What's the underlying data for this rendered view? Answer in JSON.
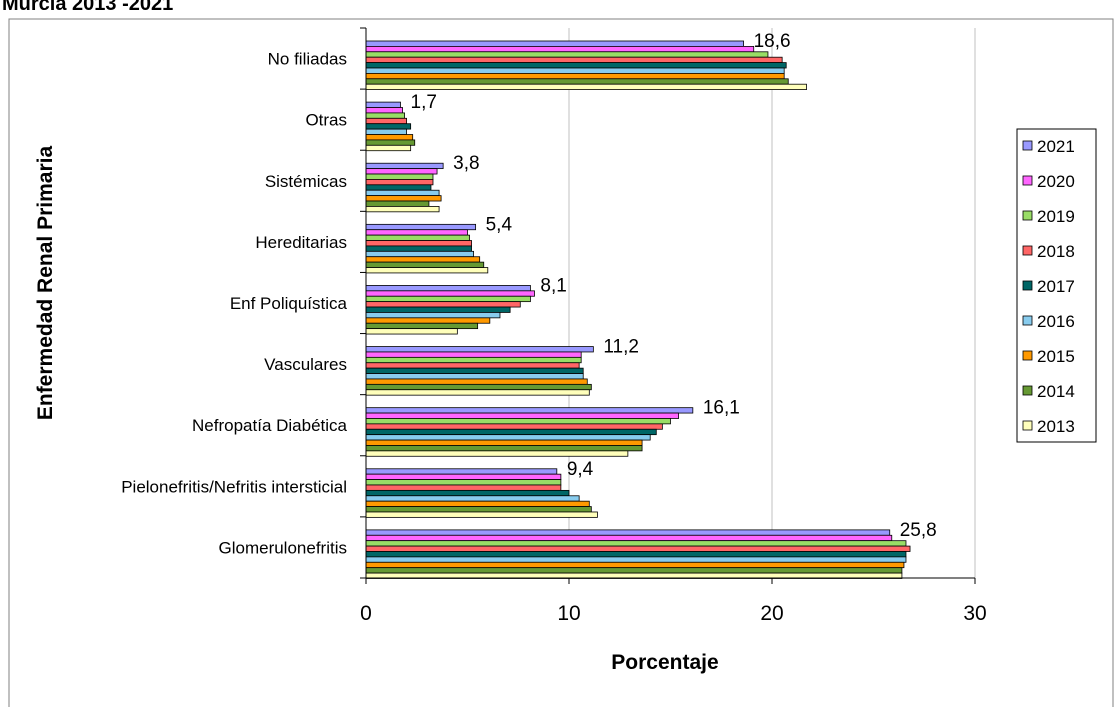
{
  "page": {
    "title": "Murcia 2013 -2021"
  },
  "chart_data": {
    "type": "bar",
    "orientation": "horizontal",
    "xlabel": "Porcentaje",
    "ylabel": "Enfermedad Renal Primaria",
    "xlim": [
      0,
      30
    ],
    "xticks": [
      "0",
      "10",
      "20",
      "30"
    ],
    "grid": "vertical gridlines",
    "legend_position": "right",
    "categories": [
      "No filiadas",
      "Otras",
      "Sistémicas",
      "Hereditarias",
      "Enf Poliquística",
      "Vasculares",
      "Nefropatía Diabética",
      "Pielonefritis/Nefritis intersticial",
      "Glomerulonefritis"
    ],
    "data_labels": [
      "18,6",
      "1,7",
      "3,8",
      "5,4",
      "8,1",
      "11,2",
      "16,1",
      "9,4",
      "25,8"
    ],
    "series": [
      {
        "name": "2021",
        "color": "#9999ff",
        "values": [
          18.6,
          1.7,
          3.8,
          5.4,
          8.1,
          11.2,
          16.1,
          9.4,
          25.8
        ]
      },
      {
        "name": "2020",
        "color": "#ff66ff",
        "values": [
          19.1,
          1.8,
          3.5,
          5.0,
          8.3,
          10.6,
          15.4,
          9.6,
          25.9
        ]
      },
      {
        "name": "2019",
        "color": "#99dd66",
        "values": [
          19.8,
          1.9,
          3.3,
          5.1,
          8.1,
          10.6,
          15.0,
          9.6,
          26.6
        ]
      },
      {
        "name": "2018",
        "color": "#ff6666",
        "values": [
          20.5,
          2.0,
          3.3,
          5.2,
          7.6,
          10.5,
          14.6,
          9.6,
          26.8
        ]
      },
      {
        "name": "2017",
        "color": "#006666",
        "values": [
          20.7,
          2.2,
          3.2,
          5.2,
          7.1,
          10.7,
          14.3,
          10.0,
          26.6
        ]
      },
      {
        "name": "2016",
        "color": "#88ccee",
        "values": [
          20.6,
          2.0,
          3.6,
          5.3,
          6.6,
          10.7,
          14.0,
          10.5,
          26.6
        ]
      },
      {
        "name": "2015",
        "color": "#ff9900",
        "values": [
          20.6,
          2.3,
          3.7,
          5.6,
          6.1,
          10.9,
          13.6,
          11.0,
          26.5
        ]
      },
      {
        "name": "2014",
        "color": "#669933",
        "values": [
          20.8,
          2.4,
          3.1,
          5.8,
          5.5,
          11.1,
          13.6,
          11.1,
          26.4
        ]
      },
      {
        "name": "2013",
        "color": "#ffffbb",
        "values": [
          21.7,
          2.2,
          3.6,
          6.0,
          4.5,
          11.0,
          12.9,
          11.4,
          26.4
        ]
      }
    ],
    "legend_order": [
      "2021",
      "2020",
      "2019",
      "2018",
      "2017",
      "2016",
      "2015",
      "2014",
      "2013"
    ]
  }
}
